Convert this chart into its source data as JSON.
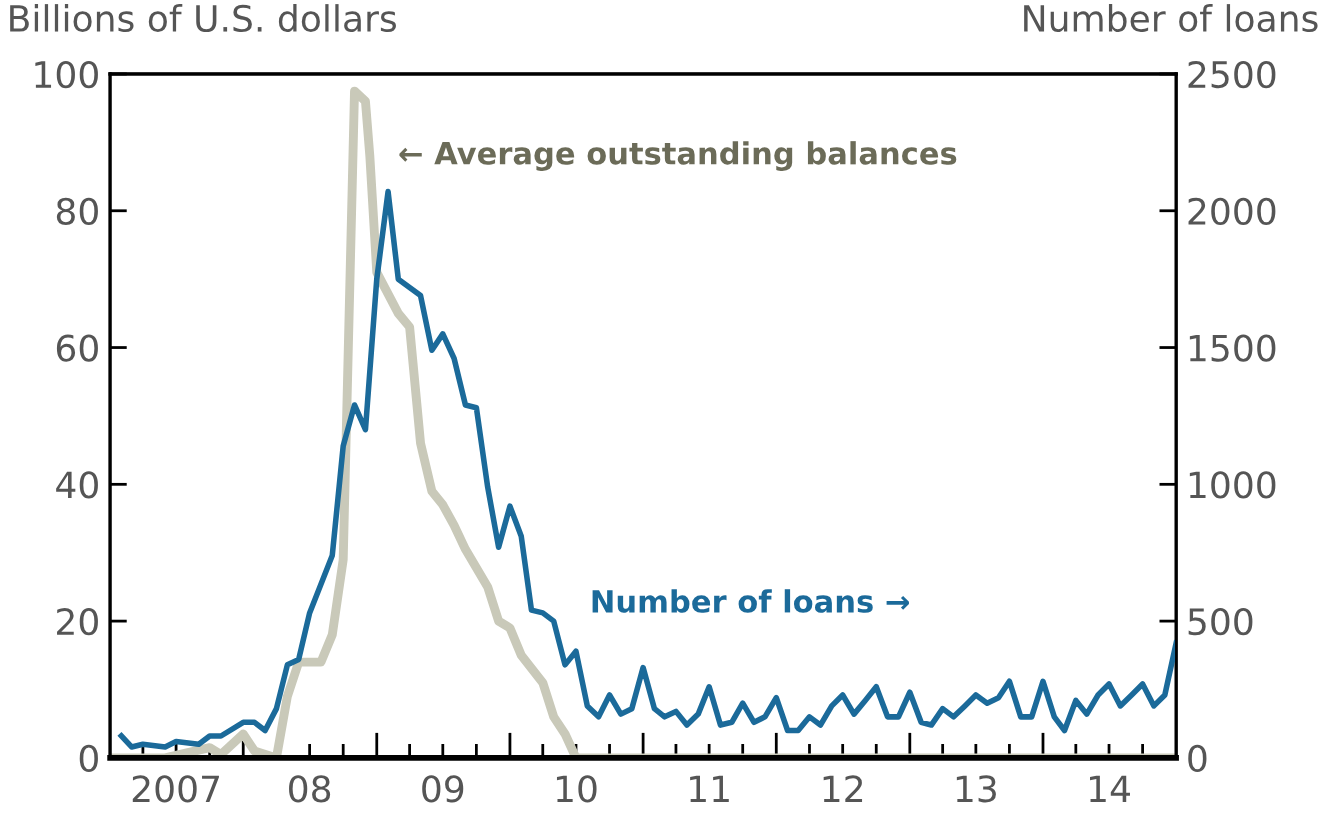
{
  "chart_data": {
    "type": "line",
    "ylabel": "Billions of U.S. dollars",
    "y2label": "Number of loans",
    "xlim": [
      "2007-01",
      "2015-01"
    ],
    "xticks": [
      {
        "value": "2007-04",
        "label": null
      },
      {
        "value": "2007-07",
        "label": "2007"
      },
      {
        "value": "2007-10",
        "label": null
      },
      {
        "value": "2008-01",
        "label": null
      },
      {
        "value": "2008-04",
        "label": null
      },
      {
        "value": "2008-07",
        "label": "08"
      },
      {
        "value": "2008-10",
        "label": null
      },
      {
        "value": "2009-01",
        "label": null
      },
      {
        "value": "2009-04",
        "label": null
      },
      {
        "value": "2009-07",
        "label": "09"
      },
      {
        "value": "2009-10",
        "label": null
      },
      {
        "value": "2010-01",
        "label": null
      },
      {
        "value": "2010-04",
        "label": null
      },
      {
        "value": "2010-07",
        "label": "10"
      },
      {
        "value": "2010-10",
        "label": null
      },
      {
        "value": "2011-01",
        "label": null
      },
      {
        "value": "2011-04",
        "label": null
      },
      {
        "value": "2011-07",
        "label": "11"
      },
      {
        "value": "2011-10",
        "label": null
      },
      {
        "value": "2012-01",
        "label": null
      },
      {
        "value": "2012-04",
        "label": null
      },
      {
        "value": "2012-07",
        "label": "12"
      },
      {
        "value": "2012-10",
        "label": null
      },
      {
        "value": "2013-01",
        "label": null
      },
      {
        "value": "2013-04",
        "label": null
      },
      {
        "value": "2013-07",
        "label": "13"
      },
      {
        "value": "2013-10",
        "label": null
      },
      {
        "value": "2014-01",
        "label": null
      },
      {
        "value": "2014-04",
        "label": null
      },
      {
        "value": "2014-07",
        "label": "14"
      },
      {
        "value": "2014-10",
        "label": null
      }
    ],
    "ylim": [
      0,
      100
    ],
    "yticks": [
      0,
      20,
      40,
      60,
      80,
      100
    ],
    "y2lim": [
      0,
      2500
    ],
    "y2ticks": [
      0,
      500,
      1000,
      1500,
      2000,
      2500
    ],
    "grid": false,
    "legend": false,
    "marker": "none",
    "line_style": "solid",
    "series": [
      {
        "name": "← Average outstanding balances",
        "color": "#c9c9b9",
        "axis": "y",
        "x": [
          "2007-01",
          "2007-06",
          "2007-10",
          "2007-11",
          "2008-01",
          "2008-02",
          "2008-04",
          "2008-05",
          "2008-06",
          "2008-08",
          "2008-09",
          "2008-10",
          "2008-11",
          "2008-12",
          "2008-12-13",
          "2009-01",
          "2009-03",
          "2009-04",
          "2009-05",
          "2009-06",
          "2009-07",
          "2009-08",
          "2009-09",
          "2009-11",
          "2009-12",
          "2010-01",
          "2010-02",
          "2010-04",
          "2010-05",
          "2010-06",
          "2010-07",
          "2011-01",
          "2012-01",
          "2013-01",
          "2014-01",
          "2015-01"
        ],
        "values": [
          0,
          0,
          1.5,
          0.5,
          3.5,
          1,
          0,
          9,
          14,
          14,
          18,
          29,
          97.5,
          96,
          88,
          71,
          65,
          63,
          46,
          39,
          37,
          34,
          30.5,
          25,
          20,
          19,
          15,
          11,
          6,
          3.5,
          0,
          0,
          0,
          0,
          0,
          0
        ]
      },
      {
        "name": "Number of loans →",
        "color": "#1b6a9a",
        "axis": "y2",
        "x": [
          "2007-02",
          "2007-03",
          "2007-04",
          "2007-06",
          "2007-07",
          "2007-09",
          "2007-10",
          "2007-11",
          "2008-01",
          "2008-02",
          "2008-03",
          "2008-04",
          "2008-05",
          "2008-06",
          "2008-07",
          "2008-09",
          "2008-10",
          "2008-11",
          "2008-12",
          "2009-01",
          "2009-02",
          "2009-03",
          "2009-05",
          "2009-06",
          "2009-07",
          "2009-08",
          "2009-09",
          "2009-10",
          "2009-11",
          "2009-12",
          "2010-01",
          "2010-02",
          "2010-03",
          "2010-04",
          "2010-05",
          "2010-06",
          "2010-07",
          "2010-08",
          "2010-09",
          "2010-10",
          "2010-11",
          "2010-12",
          "2011-01",
          "2011-02",
          "2011-03",
          "2011-04",
          "2011-05",
          "2011-06",
          "2011-07",
          "2011-08",
          "2011-09",
          "2011-10",
          "2011-11",
          "2011-12",
          "2012-01",
          "2012-02",
          "2012-03",
          "2012-04",
          "2012-05",
          "2012-06",
          "2012-07",
          "2012-08",
          "2012-09",
          "2012-10",
          "2012-11",
          "2012-12",
          "2013-01",
          "2013-02",
          "2013-03",
          "2013-04",
          "2013-05",
          "2013-06",
          "2013-07",
          "2013-08",
          "2013-09",
          "2013-10",
          "2013-11",
          "2013-12",
          "2014-01",
          "2014-02",
          "2014-03",
          "2014-04",
          "2014-05",
          "2014-06",
          "2014-07",
          "2014-08",
          "2014-09",
          "2014-10",
          "2014-11",
          "2014-12",
          "2015-01"
        ],
        "values": [
          80,
          40,
          50,
          40,
          60,
          50,
          80,
          80,
          130,
          130,
          100,
          180,
          340,
          360,
          530,
          740,
          1140,
          1290,
          1200,
          1750,
          2070,
          1750,
          1690,
          1490,
          1550,
          1460,
          1290,
          1280,
          990,
          770,
          920,
          810,
          540,
          530,
          500,
          340,
          390,
          190,
          150,
          230,
          160,
          180,
          330,
          180,
          150,
          170,
          120,
          160,
          260,
          120,
          130,
          200,
          130,
          150,
          220,
          100,
          100,
          150,
          120,
          190,
          230,
          160,
          210,
          260,
          150,
          150,
          240,
          130,
          120,
          180,
          150,
          190,
          230,
          200,
          220,
          280,
          150,
          150,
          280,
          150,
          100,
          210,
          160,
          230,
          270,
          190,
          230,
          270,
          190,
          230,
          420
        ]
      }
    ]
  }
}
